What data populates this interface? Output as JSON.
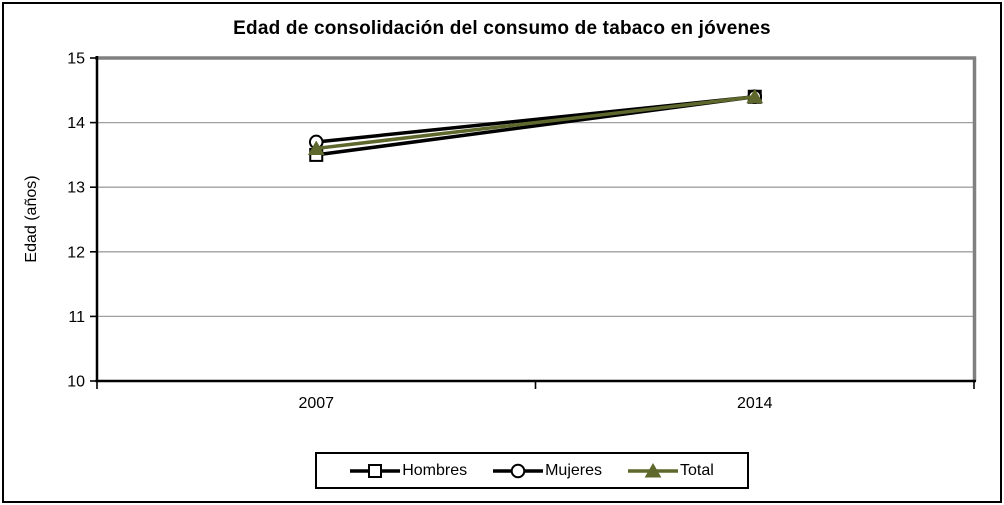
{
  "chart_data": {
    "type": "line",
    "title": "Edad de consolidación del consumo de tabaco en jóvenes",
    "xlabel": "",
    "ylabel": "Edad (años)",
    "categories": [
      "2007",
      "2014"
    ],
    "series": [
      {
        "name": "Hombres",
        "values": [
          13.5,
          14.4
        ],
        "color": "#000000",
        "marker": "square",
        "marker_fill": "#ffffff"
      },
      {
        "name": "Mujeres",
        "values": [
          13.7,
          14.4
        ],
        "color": "#000000",
        "marker": "circle",
        "marker_fill": "#ffffff"
      },
      {
        "name": "Total",
        "values": [
          13.6,
          14.4
        ],
        "color": "#5e682c",
        "marker": "triangle",
        "marker_fill": "#5e682c"
      }
    ],
    "ylim": [
      10,
      15
    ],
    "yticks": [
      10,
      11,
      12,
      13,
      14,
      15
    ],
    "grid": "horizontal",
    "legend_position": "bottom",
    "colors": {
      "axis": "#000000",
      "plot_border": "#808080",
      "gridline": "#a0a0a0",
      "text": "#000000"
    }
  }
}
